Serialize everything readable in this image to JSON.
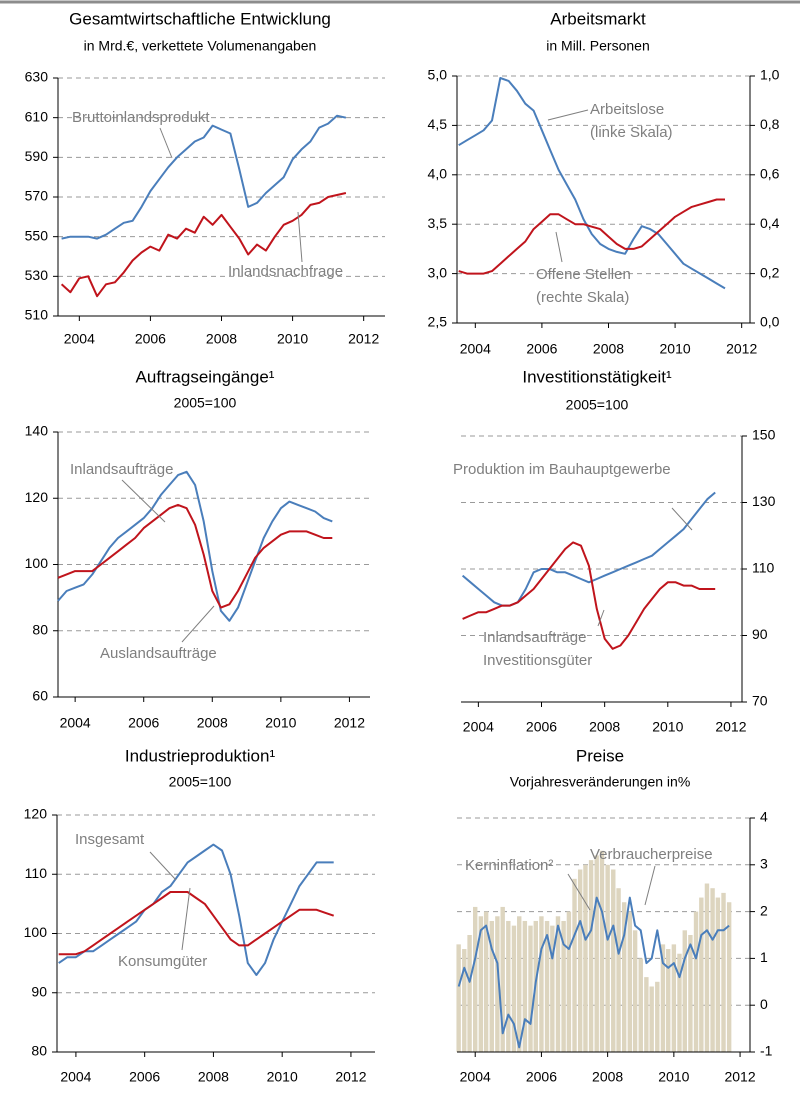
{
  "chart_data": [
    {
      "type": "line",
      "title": "Gesamtwirtschaftliche Entwicklung",
      "subtitle": "in Mrd.€, verkettete Volumenangaben",
      "yaxis": "left",
      "grid": true,
      "x": [
        2003.5,
        2003.75,
        2004,
        2004.25,
        2004.5,
        2004.75,
        2005,
        2005.25,
        2005.5,
        2005.75,
        2006,
        2006.25,
        2006.5,
        2006.75,
        2007,
        2007.25,
        2007.5,
        2007.75,
        2008,
        2008.25,
        2008.5,
        2008.75,
        2009,
        2009.25,
        2009.5,
        2009.75,
        2010,
        2010.25,
        2010.5,
        2010.75,
        2011,
        2011.25,
        2011.5
      ],
      "xlim": [
        2003.4,
        2012.6
      ],
      "xticks": [
        2004,
        2006,
        2008,
        2010,
        2012
      ],
      "ylim": [
        510,
        630
      ],
      "yticks": [
        510,
        530,
        550,
        570,
        590,
        610,
        630
      ],
      "series": [
        {
          "name": "Bruttoinlandsprodukt",
          "color": "#4a7ebb",
          "values": [
            549,
            550,
            550,
            550,
            549,
            551,
            554,
            557,
            558,
            565,
            573,
            579,
            585,
            590,
            594,
            598,
            600,
            606,
            604,
            602,
            584,
            565,
            567,
            572,
            576,
            580,
            589,
            594,
            598,
            605,
            607,
            611,
            610
          ]
        },
        {
          "name": "Inlandsnachfrage",
          "color": "#c0141c",
          "values": [
            526,
            522,
            529,
            530,
            520,
            526,
            527,
            532,
            538,
            542,
            545,
            543,
            551,
            549,
            554,
            552,
            560,
            556,
            561,
            555,
            549,
            541,
            546,
            543,
            550,
            556,
            558,
            561,
            566,
            567,
            570,
            571,
            572
          ]
        }
      ]
    },
    {
      "type": "line",
      "title": "Arbeitsmarkt",
      "subtitle": "in Mill. Personen",
      "yaxis": "left",
      "grid": true,
      "x": [
        2003.5,
        2003.75,
        2004,
        2004.25,
        2004.5,
        2004.75,
        2005,
        2005.25,
        2005.5,
        2005.75,
        2006,
        2006.25,
        2006.5,
        2006.75,
        2007,
        2007.25,
        2007.5,
        2007.75,
        2008,
        2008.25,
        2008.5,
        2008.75,
        2009,
        2009.25,
        2009.5,
        2009.75,
        2010,
        2010.25,
        2010.5,
        2010.75,
        2011,
        2011.25,
        2011.5
      ],
      "xlim": [
        2003.45,
        2012.25
      ],
      "xticks": [
        2004,
        2006,
        2008,
        2010,
        2012
      ],
      "ylim": [
        2.5,
        5
      ],
      "yticks": [
        {
          "value": 2.5,
          "label": "2,5"
        },
        {
          "value": 3,
          "label": "3,0"
        },
        {
          "value": 3.5,
          "label": "3,5"
        },
        {
          "value": 4,
          "label": "4,0"
        },
        {
          "value": 4.5,
          "label": "4,5"
        },
        {
          "value": 5,
          "label": "5,0"
        }
      ],
      "y2lim": [
        0,
        1
      ],
      "y2ticks": [
        {
          "value": 0,
          "label": "0,0"
        },
        {
          "value": 0.2,
          "label": "0,2"
        },
        {
          "value": 0.4,
          "label": "0,4"
        },
        {
          "value": 0.6,
          "label": "0,6"
        },
        {
          "value": 0.8,
          "label": "0,8"
        },
        {
          "value": 1,
          "label": "1,0"
        }
      ],
      "series": [
        {
          "name": "Arbeitslose (linke Skala)",
          "color": "#4a7ebb",
          "values": [
            4.3,
            4.35,
            4.4,
            4.45,
            4.55,
            4.98,
            4.95,
            4.85,
            4.72,
            4.65,
            4.45,
            4.25,
            4.05,
            3.9,
            3.75,
            3.55,
            3.4,
            3.3,
            3.25,
            3.22,
            3.2,
            3.35,
            3.48,
            3.45,
            3.4,
            3.3,
            3.2,
            3.1,
            3.05,
            3,
            2.95,
            2.9,
            2.85
          ]
        },
        {
          "name": "Offene Stellen (rechte Skala)",
          "color": "#c0141c",
          "axis": "y2",
          "values": [
            0.21,
            0.2,
            0.2,
            0.2,
            0.21,
            0.24,
            0.27,
            0.3,
            0.33,
            0.38,
            0.41,
            0.44,
            0.44,
            0.42,
            0.4,
            0.4,
            0.39,
            0.38,
            0.35,
            0.32,
            0.3,
            0.3,
            0.31,
            0.34,
            0.37,
            0.4,
            0.43,
            0.45,
            0.47,
            0.48,
            0.49,
            0.5,
            0.5
          ]
        }
      ]
    },
    {
      "type": "line",
      "title": "Auftragseingänge¹",
      "subtitle": "2005=100",
      "yaxis": "left",
      "grid": true,
      "x": [
        2003.5,
        2003.75,
        2004,
        2004.25,
        2004.5,
        2004.75,
        2005,
        2005.25,
        2005.5,
        2005.75,
        2006,
        2006.25,
        2006.5,
        2006.75,
        2007,
        2007.25,
        2007.5,
        2007.75,
        2008,
        2008.25,
        2008.5,
        2008.75,
        2009,
        2009.25,
        2009.5,
        2009.75,
        2010,
        2010.25,
        2010.5,
        2010.75,
        2011,
        2011.25,
        2011.5
      ],
      "xlim": [
        2003.5,
        2012.6
      ],
      "xticks": [
        2004,
        2006,
        2008,
        2010,
        2012
      ],
      "ylim": [
        60,
        140
      ],
      "yticks": [
        60,
        80,
        100,
        120,
        140
      ],
      "series": [
        {
          "name": "Inlandsaufträge",
          "color": "#4a7ebb",
          "values": [
            89,
            92,
            93,
            94,
            97,
            101,
            105,
            108,
            110,
            112,
            114,
            117,
            121,
            124,
            127,
            128,
            124,
            113,
            98,
            86,
            83,
            87,
            94,
            101,
            108,
            113,
            117,
            119,
            118,
            117,
            116,
            114,
            113
          ]
        },
        {
          "name": "Auslandsaufträge",
          "color": "#c0141c",
          "values": [
            96,
            97,
            98,
            98,
            98,
            100,
            102,
            104,
            106,
            108,
            111,
            113,
            115,
            117,
            118,
            117,
            112,
            103,
            92,
            87,
            88,
            92,
            97,
            102,
            105,
            107,
            109,
            110,
            110,
            110,
            109,
            108,
            108
          ]
        }
      ]
    },
    {
      "type": "line",
      "title": "Investitionstätigkeit¹",
      "subtitle": "2005=100",
      "yaxis": "right",
      "grid": true,
      "x": [
        2003.5,
        2003.75,
        2004,
        2004.25,
        2004.5,
        2004.75,
        2005,
        2005.25,
        2005.5,
        2005.75,
        2006,
        2006.25,
        2006.5,
        2006.75,
        2007,
        2007.25,
        2007.5,
        2007.75,
        2008,
        2008.25,
        2008.5,
        2008.75,
        2009,
        2009.25,
        2009.5,
        2009.75,
        2010,
        2010.25,
        2010.5,
        2010.75,
        2011,
        2011.25,
        2011.5
      ],
      "xlim": [
        2003.45,
        2012.35
      ],
      "xticks": [
        2004,
        2006,
        2008,
        2010,
        2012
      ],
      "ylim": [
        70,
        150
      ],
      "yticks": [
        70,
        90,
        110,
        130,
        150
      ],
      "series": [
        {
          "name": "Produktion im Bauhauptgewerbe",
          "color": "#4a7ebb",
          "values": [
            108,
            106,
            104,
            102,
            100,
            99,
            99,
            100,
            104,
            109,
            110,
            110,
            109,
            109,
            108,
            107,
            106,
            107,
            108,
            109,
            110,
            111,
            112,
            113,
            114,
            116,
            118,
            120,
            122,
            125,
            128,
            131,
            133
          ]
        },
        {
          "name": "Inlandsaufträge Investitionsgüter",
          "color": "#c0141c",
          "values": [
            95,
            96,
            97,
            97,
            98,
            99,
            99,
            100,
            102,
            104,
            107,
            110,
            113,
            116,
            118,
            117,
            111,
            98,
            89,
            86,
            87,
            90,
            94,
            98,
            101,
            104,
            106,
            106,
            105,
            105,
            104,
            104,
            104
          ]
        }
      ]
    },
    {
      "type": "line",
      "title": "Industrieproduktion¹",
      "subtitle": "2005=100",
      "yaxis": "left",
      "grid": true,
      "x": [
        2003.5,
        2003.75,
        2004,
        2004.25,
        2004.5,
        2004.75,
        2005,
        2005.25,
        2005.5,
        2005.75,
        2006,
        2006.25,
        2006.5,
        2006.75,
        2007,
        2007.25,
        2007.5,
        2007.75,
        2008,
        2008.25,
        2008.5,
        2008.75,
        2009,
        2009.25,
        2009.5,
        2009.75,
        2010,
        2010.25,
        2010.5,
        2010.75,
        2011,
        2011.25,
        2011.5
      ],
      "xlim": [
        2003.45,
        2012.7
      ],
      "xticks": [
        2004,
        2006,
        2008,
        2010,
        2012
      ],
      "ylim": [
        80,
        120
      ],
      "yticks": [
        80,
        90,
        100,
        110,
        120
      ],
      "series": [
        {
          "name": "Insgesamt",
          "color": "#4a7ebb",
          "values": [
            95,
            96,
            96,
            97,
            97,
            98,
            99,
            100,
            101,
            102,
            104,
            105,
            107,
            108,
            110,
            112,
            113,
            114,
            115,
            114,
            110,
            103,
            95,
            93,
            95,
            99,
            102,
            105,
            108,
            110,
            112,
            112,
            112
          ]
        },
        {
          "name": "Konsumgüter",
          "color": "#c0141c",
          "values": [
            96.5,
            96.5,
            96.5,
            97,
            98,
            99,
            100,
            101,
            102,
            103,
            104,
            105,
            106,
            107,
            107,
            107,
            106,
            105,
            103,
            101,
            99,
            98,
            98,
            99,
            100,
            101,
            102,
            103,
            104,
            104,
            104,
            103.5,
            103
          ]
        }
      ]
    },
    {
      "type": "combo",
      "title": "Preise",
      "subtitle": "Vorjahresveränderungen in%",
      "yaxis": "right",
      "grid": true,
      "x": [
        2003.5,
        2003.67,
        2003.83,
        2004,
        2004.17,
        2004.33,
        2004.5,
        2004.67,
        2004.83,
        2005,
        2005.17,
        2005.33,
        2005.5,
        2005.67,
        2005.83,
        2006,
        2006.17,
        2006.33,
        2006.5,
        2006.67,
        2006.83,
        2007,
        2007.17,
        2007.33,
        2007.5,
        2007.67,
        2007.83,
        2008,
        2008.17,
        2008.33,
        2008.5,
        2008.67,
        2008.83,
        2009,
        2009.17,
        2009.33,
        2009.5,
        2009.67,
        2009.83,
        2010,
        2010.17,
        2010.33,
        2010.5,
        2010.67,
        2010.83,
        2011,
        2011.17,
        2011.33,
        2011.5,
        2011.67
      ],
      "xlim": [
        2003.45,
        2012.3
      ],
      "xticks": [
        2004,
        2006,
        2008,
        2010,
        2012
      ],
      "ylim": [
        -1,
        4
      ],
      "yticks": [
        -1,
        0,
        1,
        2,
        3,
        4
      ],
      "series": [
        {
          "name": "Kerninflation²",
          "type": "bar",
          "color": "#ddd5bf",
          "values": [
            1.3,
            1.2,
            1.5,
            2.1,
            1.9,
            2,
            1.8,
            1.9,
            2.1,
            1.8,
            1.7,
            1.9,
            1.8,
            1.7,
            1.8,
            1.9,
            1.8,
            1.7,
            1.9,
            1.8,
            2,
            2.7,
            2.9,
            3,
            3.1,
            3.2,
            3.3,
            3,
            2.9,
            2.5,
            2.2,
            2,
            1.6,
            1,
            0.6,
            0.4,
            0.5,
            1.3,
            1.2,
            1.3,
            1.1,
            1.6,
            1.5,
            2,
            2.3,
            2.6,
            2.5,
            2.3,
            2.4,
            2.2
          ]
        },
        {
          "name": "Verbraucherpreise",
          "type": "line",
          "color": "#4a7ebb",
          "values": [
            0.4,
            0.8,
            0.5,
            1,
            1.6,
            1.7,
            1.2,
            0.9,
            -0.6,
            -0.2,
            -0.4,
            -0.9,
            -0.3,
            -0.4,
            0.5,
            1.2,
            1.5,
            1,
            1.7,
            1.3,
            1.2,
            1.5,
            1.8,
            1.4,
            1.6,
            2.3,
            2,
            1.4,
            1.7,
            1.1,
            1.5,
            2.3,
            1.7,
            1.6,
            0.9,
            1,
            1.6,
            0.9,
            0.8,
            0.9,
            0.6,
            1,
            1.3,
            1,
            1.5,
            1.6,
            1.4,
            1.6,
            1.6,
            1.7
          ]
        }
      ]
    }
  ]
}
